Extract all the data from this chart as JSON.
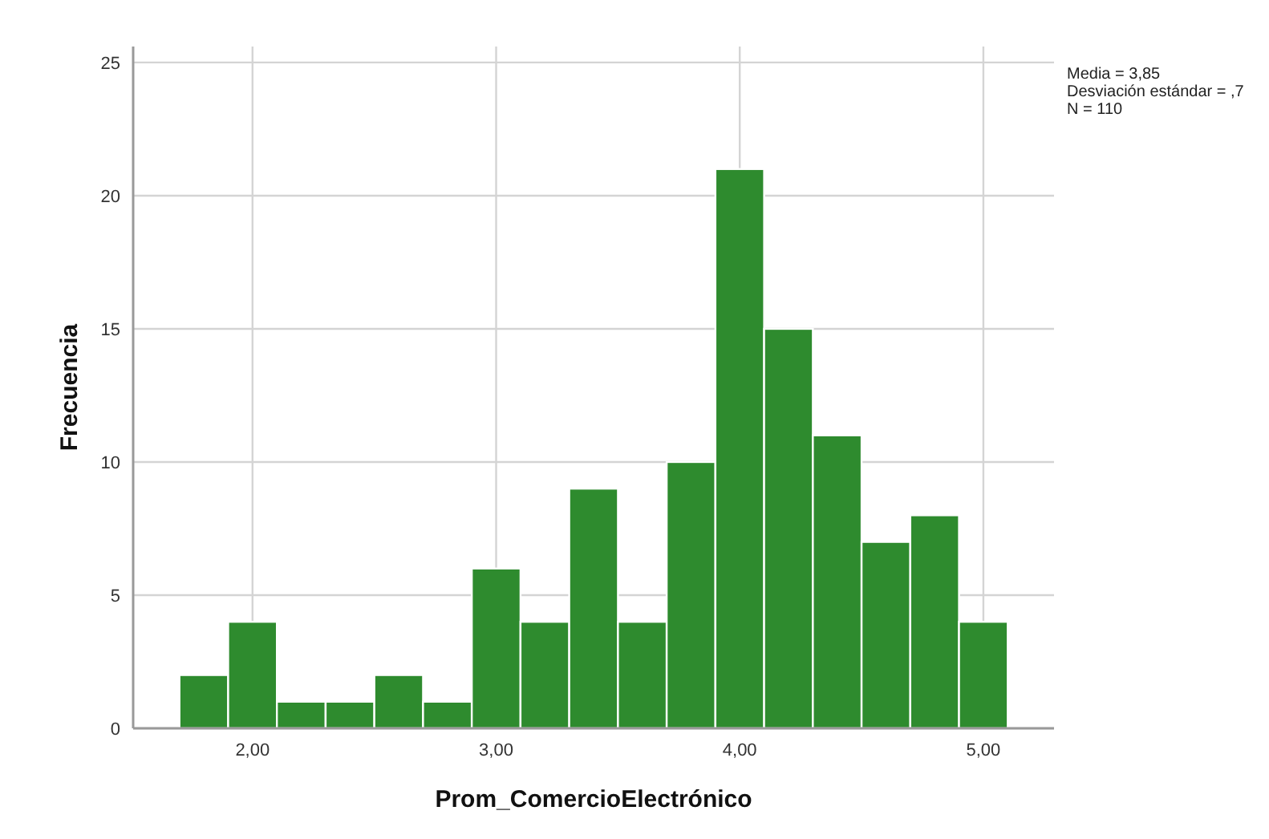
{
  "chart_data": {
    "type": "histogram",
    "xlabel": "Prom_ComercioElectrónico",
    "ylabel": "Frecuencia",
    "bins": [
      1.7,
      1.9,
      2.1,
      2.3,
      2.5,
      2.7,
      2.9,
      3.1,
      3.3,
      3.5,
      3.7,
      3.9,
      4.1,
      4.3,
      4.5,
      4.7,
      4.9,
      5.1
    ],
    "values": [
      2,
      4,
      1,
      1,
      2,
      1,
      6,
      4,
      9,
      4,
      10,
      21,
      15,
      11,
      7,
      8,
      4
    ],
    "color": "#2e8b2e",
    "xlim": [
      1.51,
      5.29
    ],
    "xticks": [
      {
        "value": 2,
        "label": "2,00"
      },
      {
        "value": 3,
        "label": "3,00"
      },
      {
        "value": 4,
        "label": "4,00"
      },
      {
        "value": 5,
        "label": "5,00"
      }
    ],
    "ylim": [
      0,
      25.6
    ],
    "yticks": [
      0,
      5,
      10,
      15,
      20,
      25
    ],
    "grid": true,
    "annotations": [
      "Media = 3,85",
      "Desviación estándar = ,7",
      "N = 110"
    ]
  }
}
